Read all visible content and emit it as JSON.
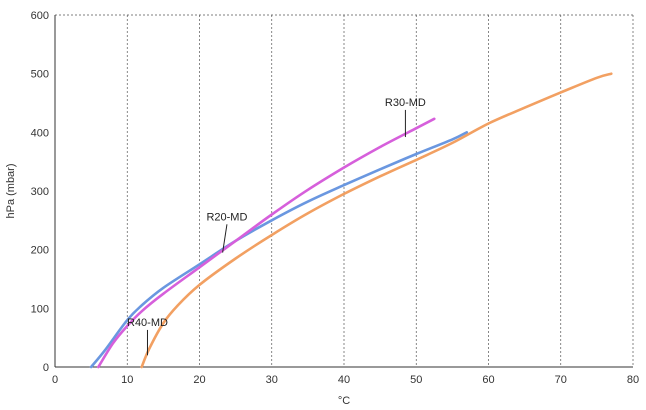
{
  "chart_data": {
    "type": "line",
    "title": "",
    "xlabel": "°C",
    "ylabel": "hPa (mbar)",
    "xlim": [
      0,
      80
    ],
    "ylim": [
      0,
      600
    ],
    "xticks": [
      "0",
      "10",
      "20",
      "30",
      "40",
      "50",
      "60",
      "70",
      "80"
    ],
    "yticks": [
      "0",
      "100",
      "200",
      "300",
      "400",
      "500",
      "600"
    ],
    "grid": {
      "vertical": true,
      "horizontal": false,
      "style": "dotted"
    },
    "legend": "none",
    "series": [
      {
        "name": "R20-MD",
        "color": "#6a97e0",
        "x": [
          5,
          7,
          10,
          12,
          15,
          20,
          25,
          30,
          35,
          40,
          45,
          50,
          55,
          57
        ],
        "y": [
          0,
          30,
          80,
          105,
          135,
          175,
          215,
          250,
          282,
          310,
          337,
          363,
          388,
          400
        ]
      },
      {
        "name": "R30-MD",
        "color": "#d65fdb",
        "x": [
          6,
          8,
          10,
          12,
          15,
          20,
          25,
          30,
          35,
          40,
          45,
          50,
          52.5
        ],
        "y": [
          0,
          40,
          70,
          95,
          125,
          170,
          215,
          260,
          302,
          340,
          375,
          407,
          423
        ]
      },
      {
        "name": "R40-MD",
        "color": "#f2a062",
        "x": [
          12,
          13,
          15,
          17,
          20,
          25,
          30,
          35,
          40,
          45,
          50,
          55,
          60,
          65,
          70,
          75,
          77
        ],
        "y": [
          0,
          30,
          75,
          105,
          140,
          185,
          225,
          262,
          295,
          325,
          353,
          382,
          415,
          442,
          468,
          493,
          500
        ]
      }
    ],
    "annotations": [
      {
        "text": "R30-MD",
        "label_x": 48.5,
        "label_y": 445,
        "tip_x": 48.5,
        "tip_y": 392
      },
      {
        "text": "R20-MD",
        "label_x": 23.8,
        "label_y": 250,
        "tip_x": 23.2,
        "tip_y": 195
      },
      {
        "text": "R40-MD",
        "label_x": 12.8,
        "label_y": 70,
        "tip_x": 12.8,
        "tip_y": 20
      }
    ]
  }
}
